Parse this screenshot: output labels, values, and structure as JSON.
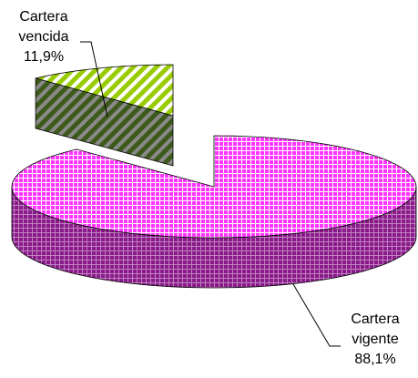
{
  "chart_data": {
    "type": "pie",
    "three_d": true,
    "exploded": true,
    "slices": [
      {
        "label_lines": [
          "Cartera",
          "vencida"
        ],
        "percent_text": "11,9%",
        "value": 11.9,
        "color": "#99cc00",
        "pattern": "diagonal-stripes"
      },
      {
        "label_lines": [
          "Cartera",
          "vigente"
        ],
        "percent_text": "88,1%",
        "value": 88.1,
        "color": "#ff33ff",
        "pattern": "grid"
      }
    ]
  }
}
